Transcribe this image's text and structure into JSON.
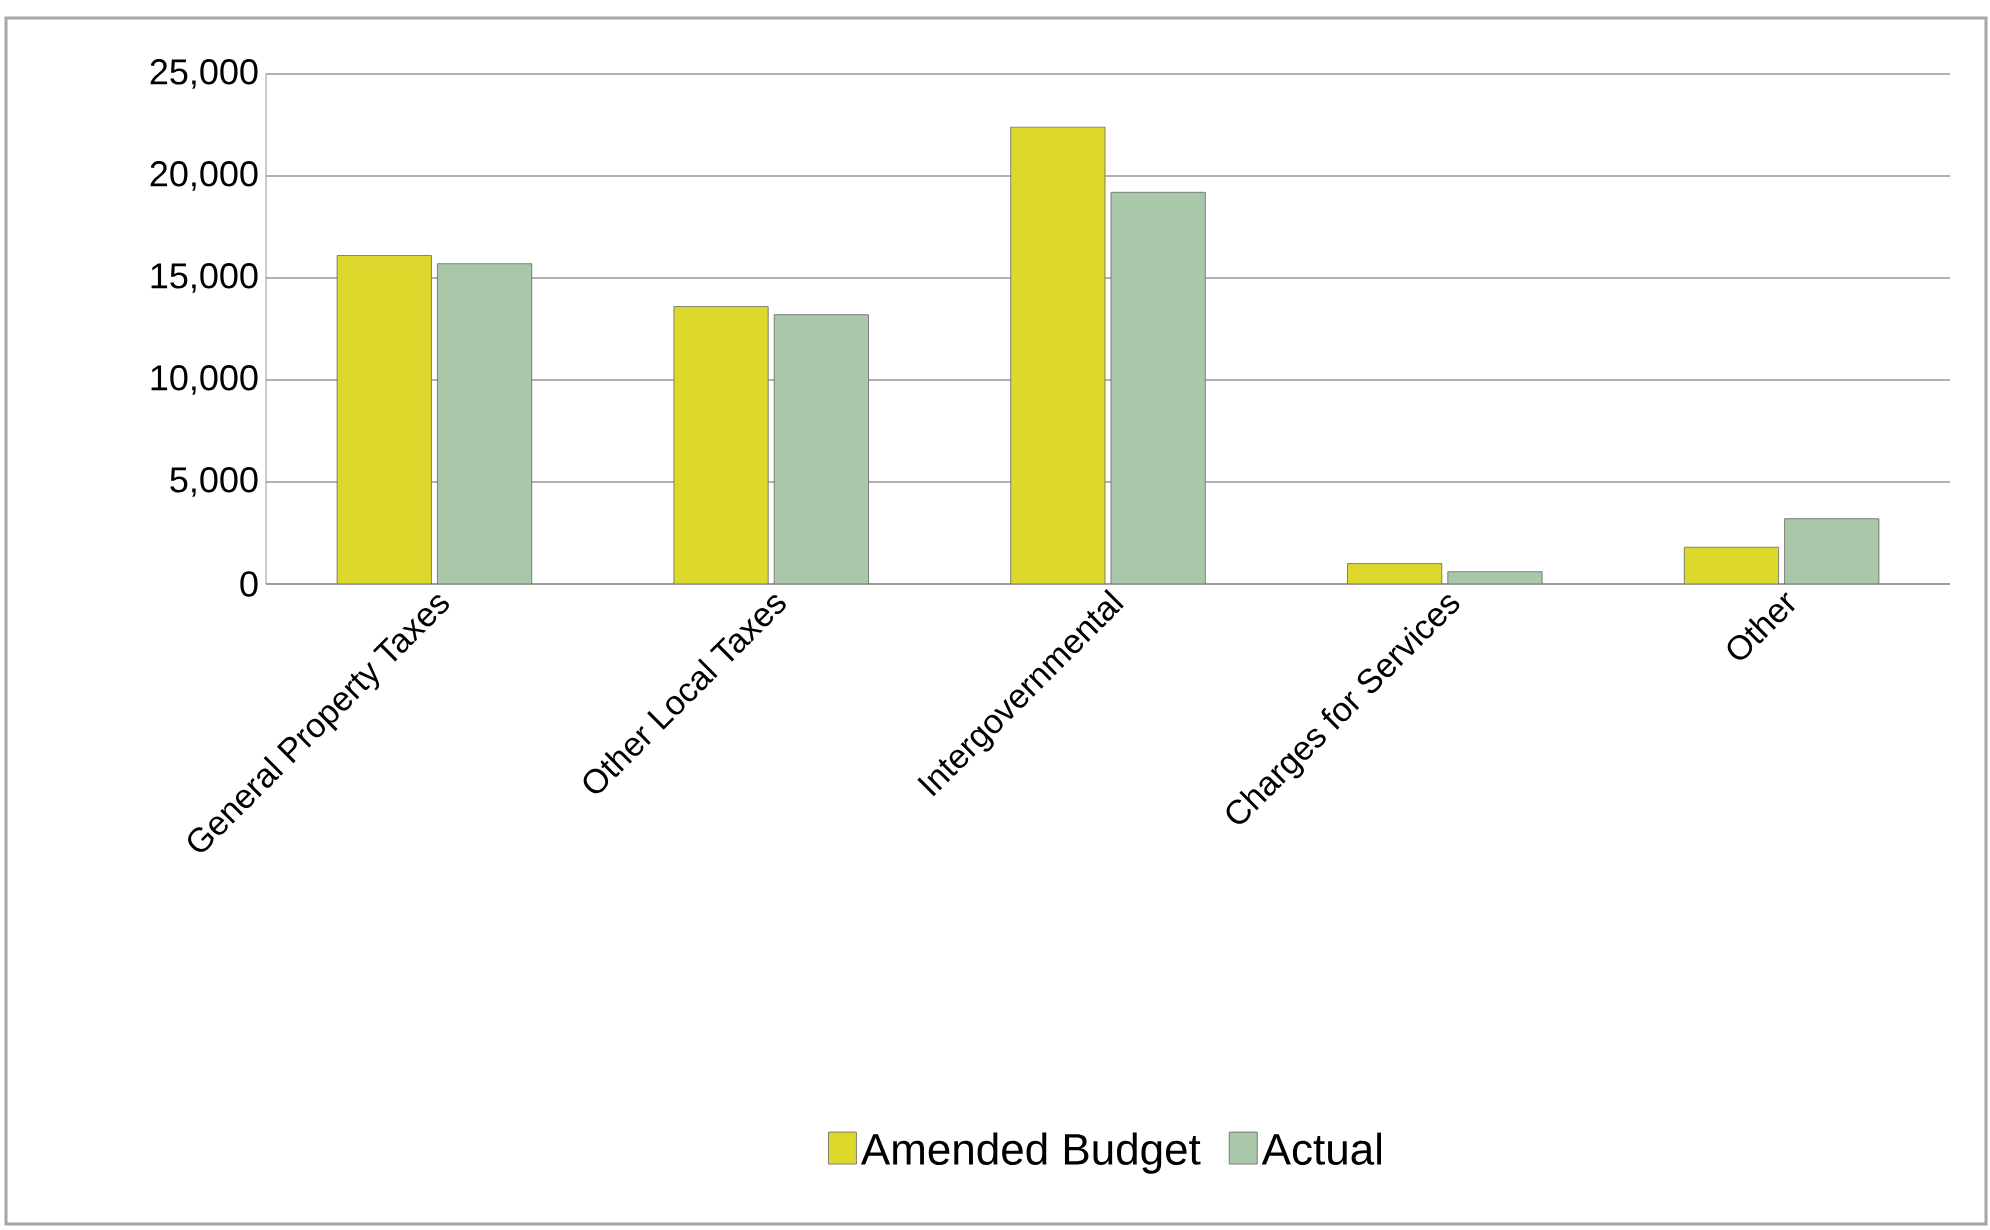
{
  "chart_data": {
    "type": "bar",
    "categories": [
      "General Property Taxes",
      "Other Local Taxes",
      "Intergovernmental",
      "Charges for Services",
      "Other"
    ],
    "series": [
      {
        "name": "Amended Budget",
        "color": "#dcd82c",
        "values": [
          16100,
          13600,
          22400,
          1000,
          1800
        ]
      },
      {
        "name": "Actual",
        "color": "#a9c8aa",
        "values": [
          15700,
          13200,
          19200,
          600,
          3200
        ]
      }
    ],
    "ylim": [
      0,
      25000
    ],
    "yticks": [
      {
        "value": 0,
        "label": "0"
      },
      {
        "value": 5000,
        "label": "5,000"
      },
      {
        "value": 10000,
        "label": "10,000"
      },
      {
        "value": 15000,
        "label": "15,000"
      },
      {
        "value": 20000,
        "label": "20,000"
      },
      {
        "value": 25000,
        "label": "25,000"
      }
    ],
    "grid": "y",
    "legend": "bottom"
  }
}
